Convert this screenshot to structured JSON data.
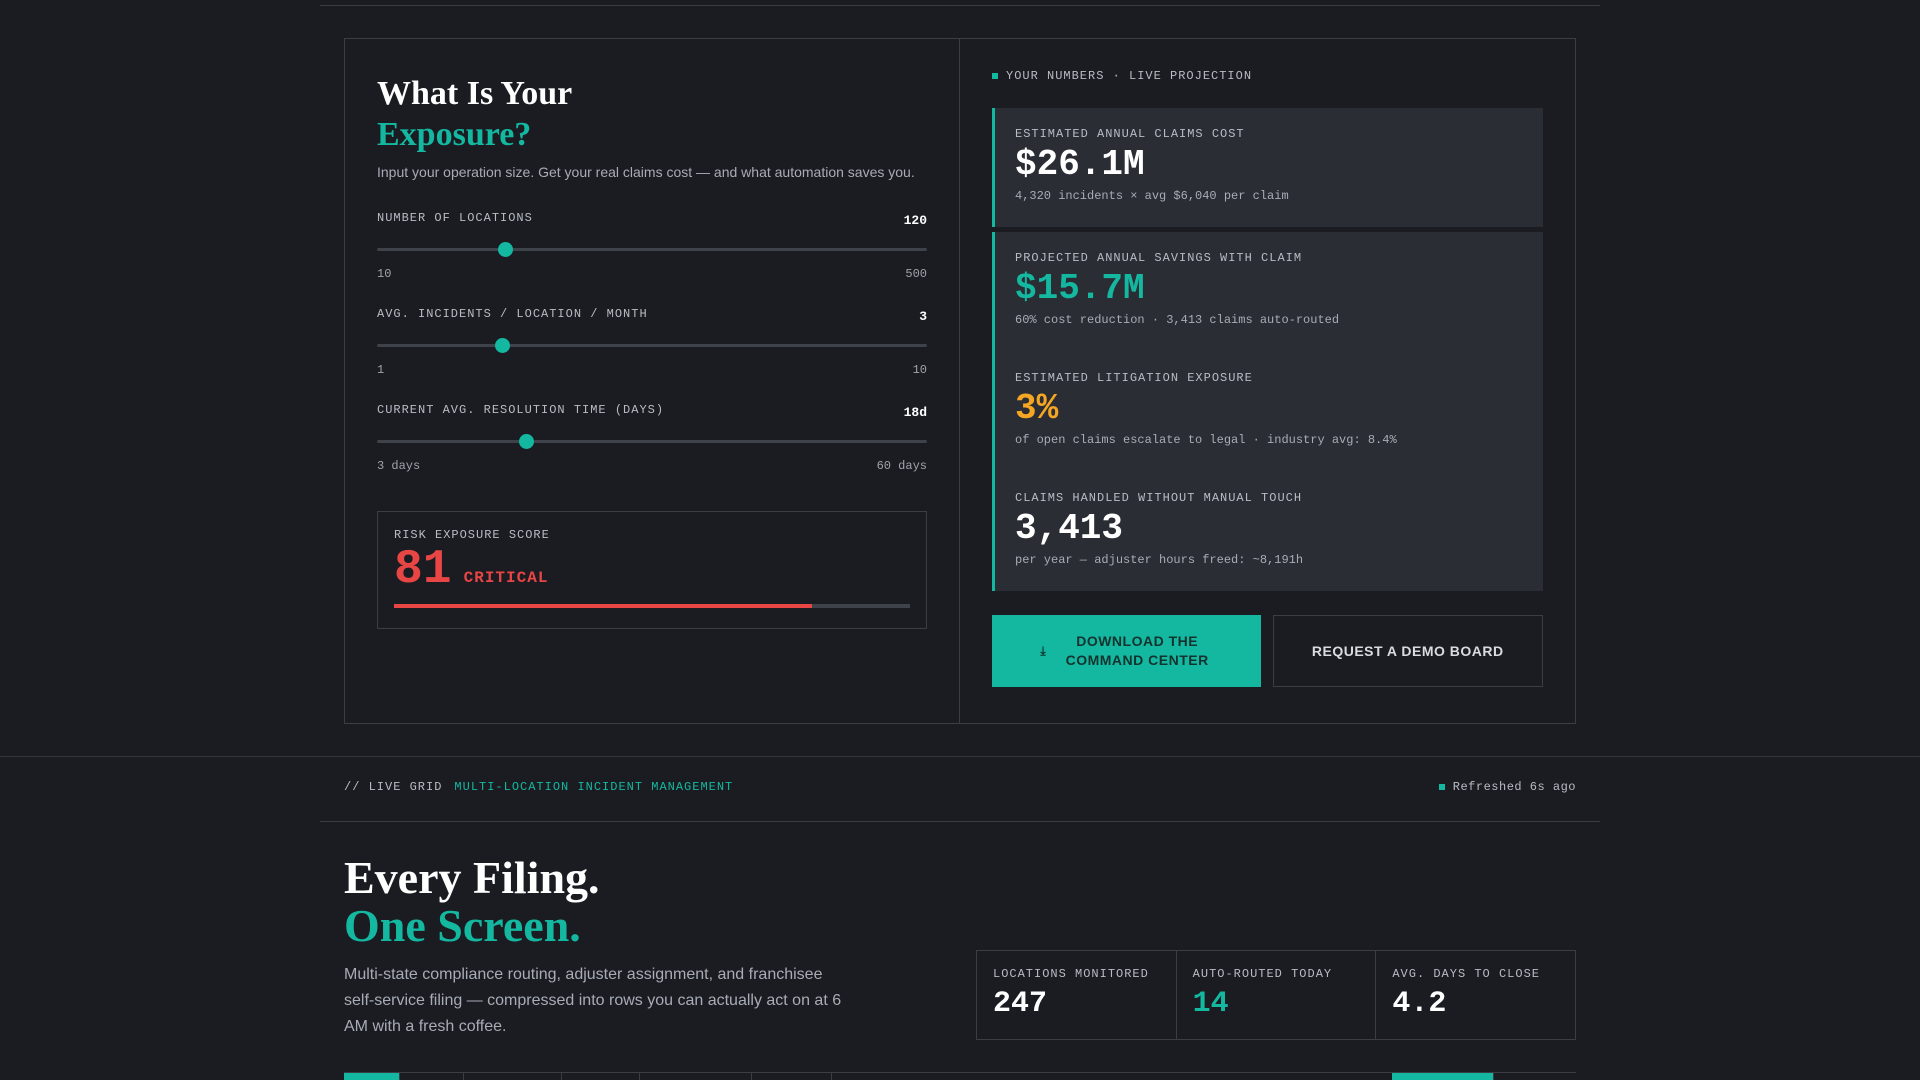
{
  "calculator": {
    "title_line1": "What Is Your",
    "title_line2": "Exposure?",
    "subtitle": "Input your operation size. Get your real claims cost — and what automation saves you.",
    "sliders": [
      {
        "label": "NUMBER OF LOCATIONS",
        "value": "120",
        "min": "10",
        "max": "500",
        "position": 0.2327
      },
      {
        "label": "AVG. INCIDENTS / LOCATION / MONTH",
        "value": "3",
        "min": "1",
        "max": "10",
        "position": 0.2266
      },
      {
        "label": "CURRENT AVG. RESOLUTION TIME (DAYS)",
        "value": "18d",
        "min": "3 days",
        "max": "60 days",
        "position": 0.2705
      }
    ],
    "risk": {
      "label": "RISK EXPOSURE SCORE",
      "score": "81",
      "level": "CRITICAL",
      "fill": 0.81
    }
  },
  "numbers": {
    "header": "YOUR NUMBERS · LIVE PROJECTION",
    "cards": [
      {
        "label": "ESTIMATED ANNUAL CLAIMS COST",
        "value": "$26.1M",
        "note": "4,320 incidents × avg $6,040 per claim"
      },
      {
        "label": "PROJECTED ANNUAL SAVINGS WITH CLAIM",
        "value": "$15.7M",
        "note": "60% cost reduction · 3,413 claims auto-routed"
      },
      {
        "label": "ESTIMATED LITIGATION EXPOSURE",
        "value": "3%",
        "note": "of open claims escalate to legal · industry avg: 8.4%"
      },
      {
        "label": "CLAIMS HANDLED WITHOUT MANUAL TOUCH",
        "value": "3,413",
        "note": "per year — adjuster hours freed: ~8,191h"
      }
    ],
    "download_label": "DOWNLOAD THE COMMAND CENTER",
    "download_icon": "download-icon",
    "demo_label": "REQUEST A DEMO BOARD"
  },
  "live_grid": {
    "tag": "// LIVE GRID",
    "title": "MULTI-LOCATION INCIDENT MANAGEMENT",
    "refreshed": "Refreshed 6s ago"
  },
  "filing": {
    "title_line1": "Every Filing.",
    "title_line2": "One Screen.",
    "description": "Multi-state compliance routing, adjuster assignment, and franchisee self-service filing — compressed into rows you can actually act on at 6 AM with a fresh coffee.",
    "kpis": [
      {
        "label": "LOCATIONS MONITORED",
        "value": "247"
      },
      {
        "label": "AUTO-ROUTED TODAY",
        "value": "14"
      },
      {
        "label": "AVG. DAYS TO CLOSE",
        "value": "4.2"
      }
    ]
  },
  "colors": {
    "accent": "#14b8a0",
    "critical": "#e84545",
    "warning": "#f5a623",
    "background": "#1a1c22",
    "card": "#2a2d34"
  }
}
